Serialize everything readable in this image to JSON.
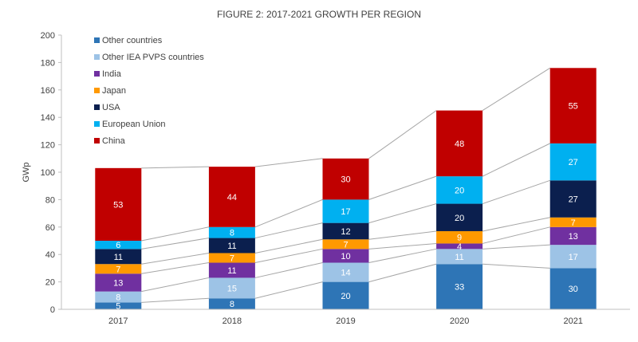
{
  "chart_data": {
    "type": "bar",
    "stacked": true,
    "title": "FIGURE 2: 2017-2021 GROWTH PER REGION",
    "ylabel": "GWp",
    "xlabel": "",
    "ylim": [
      0,
      200
    ],
    "yticks": [
      0,
      20,
      40,
      60,
      80,
      100,
      120,
      140,
      160,
      180,
      200
    ],
    "grid": false,
    "legend_position": "top-left",
    "series_lines": true,
    "categories": [
      "2017",
      "2018",
      "2019",
      "2020",
      "2021"
    ],
    "series": [
      {
        "name": "Other countries",
        "color": "#2e75b6",
        "label_color": "#ffffff",
        "values": [
          5,
          8,
          20,
          33,
          30
        ]
      },
      {
        "name": "Other IEA PVPS countries",
        "color": "#9dc3e6",
        "label_color": "#ffffff",
        "values": [
          8,
          15,
          14,
          11,
          17
        ]
      },
      {
        "name": "India",
        "color": "#7030a0",
        "label_color": "#ffffff",
        "values": [
          13,
          11,
          10,
          4,
          13
        ]
      },
      {
        "name": "Japan",
        "color": "#ff9900",
        "label_color": "#ffffff",
        "values": [
          7,
          7,
          7,
          9,
          7
        ]
      },
      {
        "name": "USA",
        "color": "#0b1f4e",
        "label_color": "#ffffff",
        "values": [
          11,
          11,
          12,
          20,
          27
        ]
      },
      {
        "name": "European Union",
        "color": "#00b0f0",
        "label_color": "#ffffff",
        "values": [
          6,
          8,
          17,
          20,
          27
        ]
      },
      {
        "name": "China",
        "color": "#c00000",
        "label_color": "#ffffff",
        "values": [
          53,
          44,
          30,
          48,
          55
        ]
      }
    ]
  }
}
